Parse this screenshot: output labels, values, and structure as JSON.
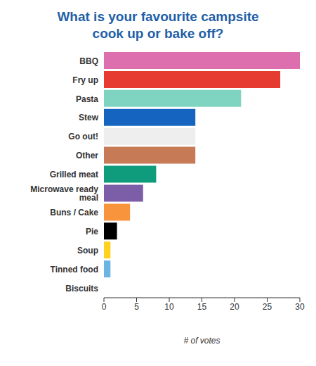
{
  "chart_data": {
    "type": "bar",
    "orientation": "horizontal",
    "title": "What is your favourite campsite cook up or bake off?",
    "x_label": "# of votes",
    "categories": [
      "BBQ",
      "Fry up",
      "Pasta",
      "Stew",
      "Go out!",
      "Other",
      "Grilled meat",
      "Microwave ready meal",
      "Buns / Cake",
      "Pie",
      "Soup",
      "Tinned food",
      "Biscuits"
    ],
    "values": [
      30,
      27,
      21,
      14,
      14,
      14,
      8,
      6,
      4,
      2,
      1,
      1,
      0
    ],
    "colors": [
      "#dd6fae",
      "#e53b30",
      "#7fd4c1",
      "#1565c0",
      "#eeeeee",
      "#c67a55",
      "#0f9c7d",
      "#7b5ea7",
      "#f7943c",
      "#000000",
      "#ffd21f",
      "#6cb4e4",
      "#777777"
    ],
    "xlim": [
      0,
      30
    ],
    "xticks": [
      0,
      5,
      10,
      15,
      20,
      25,
      30
    ],
    "grid": false
  }
}
